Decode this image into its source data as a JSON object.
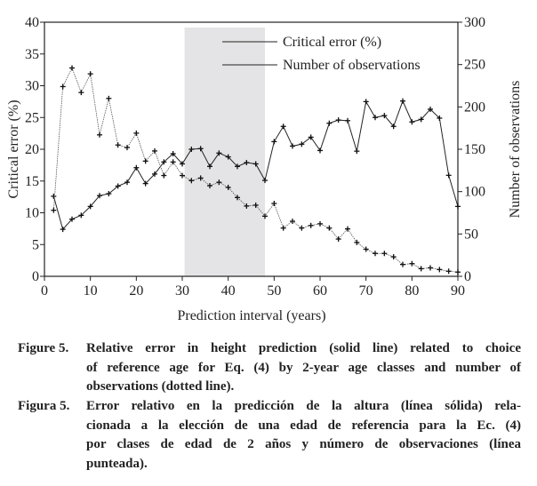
{
  "chart_data": {
    "type": "line",
    "xlabel": "Prediction interval (years)",
    "ylabel": "Critical error (%)",
    "y2label": "Number of observations",
    "xlim": [
      0,
      90
    ],
    "ylim": [
      0,
      40
    ],
    "y2lim": [
      0,
      300
    ],
    "xticks": [
      "0",
      "10",
      "20",
      "30",
      "40",
      "50",
      "60",
      "70",
      "80",
      "90"
    ],
    "yticks": [
      "0",
      "5",
      "10",
      "15",
      "20",
      "25",
      "30",
      "35",
      "40"
    ],
    "y2ticks": [
      "0",
      "50",
      "100",
      "150",
      "200",
      "250",
      "300"
    ],
    "legend_position": "top-center",
    "shaded_region": [
      30.5,
      48
    ],
    "x": [
      2,
      4,
      6,
      8,
      10,
      12,
      14,
      16,
      18,
      20,
      22,
      24,
      26,
      28,
      30,
      32,
      34,
      36,
      38,
      40,
      42,
      44,
      46,
      48,
      50,
      52,
      54,
      56,
      58,
      60,
      62,
      64,
      66,
      68,
      70,
      72,
      74,
      76,
      78,
      80,
      82,
      84,
      86,
      88,
      90
    ],
    "series": [
      {
        "name": "Critical error (%)",
        "axis": "left",
        "style": "solid",
        "values": [
          12.6,
          7.4,
          9,
          9.6,
          11,
          12.7,
          13,
          14.2,
          14.8,
          17.1,
          14.6,
          16.1,
          18,
          19.3,
          17.7,
          20,
          20.1,
          17.3,
          19.4,
          18.8,
          17.3,
          17.9,
          17.7,
          15.1,
          21.2,
          23.6,
          20.5,
          20.8,
          21.9,
          19.8,
          24.1,
          24.6,
          24.5,
          19.7,
          27.5,
          25,
          25.3,
          23.6,
          27.6,
          24.3,
          24.7,
          26.3,
          24.9,
          15.9,
          11
        ]
      },
      {
        "name": "Number of observations",
        "axis": "right",
        "style": "dotted",
        "values": [
          78,
          224,
          246,
          217,
          239,
          167,
          210,
          155,
          152,
          169,
          136,
          148,
          119,
          135,
          119,
          113,
          116,
          107,
          111,
          105,
          93,
          83,
          84,
          71,
          86,
          57,
          65,
          57,
          60,
          62,
          57,
          44,
          56,
          40,
          32,
          27,
          27,
          23,
          14,
          15,
          9,
          10,
          8,
          6,
          5
        ]
      }
    ]
  },
  "caption": {
    "en_label": "Figure 5.",
    "en_lines": [
      "Relative error in height prediction (solid line) related to choice",
      "of reference age for Eq. (4) by 2-year age classes and number of",
      "observations (dotted line)."
    ],
    "es_label": "Figura 5.",
    "es_lines": [
      "Error relativo en la predicción de la altura (línea sólida) rela-",
      "cionada a la elección de una edad de referencia para la Ec. (4)",
      "por clases de edad de 2 años y número de observaciones (línea",
      "punteada)."
    ]
  }
}
